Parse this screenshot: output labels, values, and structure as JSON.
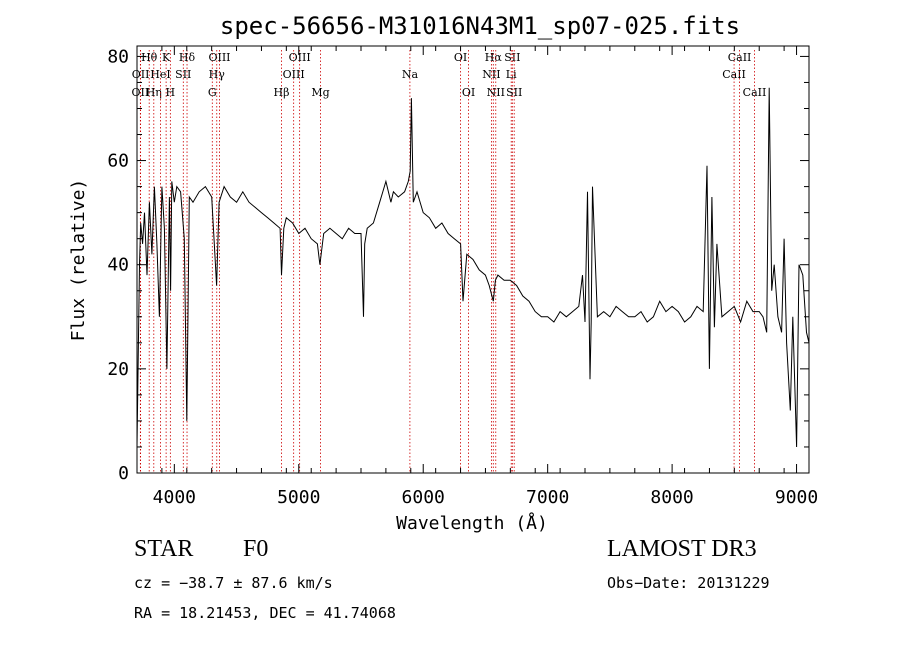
{
  "chart_data": {
    "type": "line",
    "title": "spec-56656-M31016N43M1_sp07-025.fits",
    "xlabel": "Wavelength (Å)",
    "ylabel": "Flux (relative)",
    "xlim": [
      3700,
      9100
    ],
    "ylim": [
      0,
      82
    ],
    "xticks": [
      4000,
      5000,
      6000,
      7000,
      8000,
      9000
    ],
    "yticks": [
      0,
      20,
      40,
      60,
      80
    ],
    "series": [
      {
        "name": "flux",
        "x": [
          3700,
          3710,
          3720,
          3730,
          3745,
          3760,
          3780,
          3800,
          3820,
          3840,
          3860,
          3880,
          3900,
          3920,
          3940,
          3960,
          3970,
          3980,
          4000,
          4020,
          4050,
          4080,
          4100,
          4120,
          4150,
          4200,
          4250,
          4300,
          4340,
          4360,
          4400,
          4450,
          4500,
          4550,
          4600,
          4650,
          4700,
          4750,
          4800,
          4850,
          4861,
          4880,
          4900,
          4950,
          5000,
          5050,
          5100,
          5150,
          5170,
          5200,
          5250,
          5300,
          5350,
          5400,
          5450,
          5500,
          5520,
          5530,
          5550,
          5600,
          5650,
          5700,
          5720,
          5740,
          5760,
          5800,
          5850,
          5880,
          5895,
          5905,
          5920,
          5950,
          6000,
          6050,
          6100,
          6150,
          6200,
          6250,
          6300,
          6320,
          6350,
          6400,
          6450,
          6500,
          6530,
          6563,
          6580,
          6600,
          6650,
          6700,
          6750,
          6800,
          6850,
          6900,
          6950,
          7000,
          7050,
          7100,
          7150,
          7200,
          7250,
          7280,
          7300,
          7320,
          7340,
          7350,
          7360,
          7400,
          7450,
          7500,
          7550,
          7600,
          7650,
          7700,
          7750,
          7800,
          7850,
          7900,
          7950,
          8000,
          8050,
          8100,
          8150,
          8200,
          8250,
          8280,
          8300,
          8320,
          8340,
          8360,
          8400,
          8450,
          8500,
          8550,
          8600,
          8650,
          8700,
          8730,
          8760,
          8780,
          8800,
          8820,
          8850,
          8880,
          8900,
          8920,
          8950,
          8970,
          9000,
          9020,
          9050,
          9080,
          9100
        ],
        "values": [
          5,
          22,
          40,
          48,
          44,
          50,
          38,
          52,
          42,
          55,
          44,
          30,
          55,
          47,
          20,
          53,
          35,
          56,
          52,
          55,
          54,
          45,
          10,
          53,
          52,
          54,
          55,
          53,
          36,
          52,
          55,
          53,
          52,
          54,
          52,
          51,
          50,
          49,
          48,
          47,
          38,
          47,
          49,
          48,
          46,
          47,
          45,
          44,
          40,
          46,
          47,
          46,
          45,
          47,
          46,
          46,
          30,
          44,
          47,
          48,
          52,
          56,
          54,
          52,
          54,
          53,
          54,
          56,
          58,
          72,
          52,
          54,
          50,
          49,
          47,
          48,
          46,
          45,
          44,
          33,
          42,
          41,
          39,
          38,
          36,
          33,
          37,
          38,
          37,
          37,
          36,
          34,
          33,
          31,
          30,
          30,
          29,
          31,
          30,
          31,
          32,
          38,
          29,
          54,
          18,
          29,
          55,
          30,
          31,
          30,
          32,
          31,
          30,
          30,
          31,
          29,
          30,
          33,
          31,
          32,
          31,
          29,
          30,
          32,
          31,
          59,
          20,
          53,
          28,
          44,
          30,
          31,
          32,
          29,
          33,
          31,
          31,
          30,
          27,
          74,
          35,
          40,
          30,
          27,
          45,
          25,
          12,
          30,
          5,
          40,
          38,
          27,
          25
        ]
      }
    ],
    "lines": [
      {
        "name": "OII",
        "wl": 3727,
        "row": 3
      },
      {
        "name": "OII",
        "wl": 3729,
        "row": 2
      },
      {
        "name": "Hθ",
        "wl": 3798,
        "row": 1
      },
      {
        "name": "Hη",
        "wl": 3835,
        "row": 3
      },
      {
        "name": "HeI",
        "wl": 3889,
        "row": 2
      },
      {
        "name": "K",
        "wl": 3934,
        "row": 1
      },
      {
        "name": "H",
        "wl": 3968,
        "row": 3
      },
      {
        "name": "SII",
        "wl": 4072,
        "row": 2
      },
      {
        "name": "Hδ",
        "wl": 4102,
        "row": 1
      },
      {
        "name": "G",
        "wl": 4305,
        "row": 3
      },
      {
        "name": "Hγ",
        "wl": 4341,
        "row": 2
      },
      {
        "name": "OIII",
        "wl": 4363,
        "row": 1
      },
      {
        "name": "Hβ",
        "wl": 4861,
        "row": 3
      },
      {
        "name": "OIII",
        "wl": 4959,
        "row": 2
      },
      {
        "name": "OIII",
        "wl": 5007,
        "row": 1
      },
      {
        "name": "Mg",
        "wl": 5175,
        "row": 3
      },
      {
        "name": "Na",
        "wl": 5893,
        "row": 2
      },
      {
        "name": "OI",
        "wl": 6300,
        "row": 1
      },
      {
        "name": "OI",
        "wl": 6364,
        "row": 3
      },
      {
        "name": "NII",
        "wl": 6548,
        "row": 2
      },
      {
        "name": "Hα",
        "wl": 6563,
        "row": 1
      },
      {
        "name": "NII",
        "wl": 6583,
        "row": 3
      },
      {
        "name": "Li",
        "wl": 6707,
        "row": 2
      },
      {
        "name": "SII",
        "wl": 6716,
        "row": 1
      },
      {
        "name": "SII",
        "wl": 6731,
        "row": 3
      },
      {
        "name": "CaII",
        "wl": 8498,
        "row": 2
      },
      {
        "name": "CaII",
        "wl": 8542,
        "row": 1
      },
      {
        "name": "CaII",
        "wl": 8662,
        "row": 3
      }
    ]
  },
  "info": {
    "class": "STAR",
    "subclass": "F0",
    "survey": "LAMOST DR3",
    "cz": "cz = −38.7 ± 87.6 km/s",
    "obs_date": "Obs−Date: 20131229",
    "coords": "RA =  18.21453, DEC =  41.74068"
  },
  "colors": {
    "background": "#ffffff",
    "axes": "#000000",
    "line_marker": "#cc0000"
  }
}
